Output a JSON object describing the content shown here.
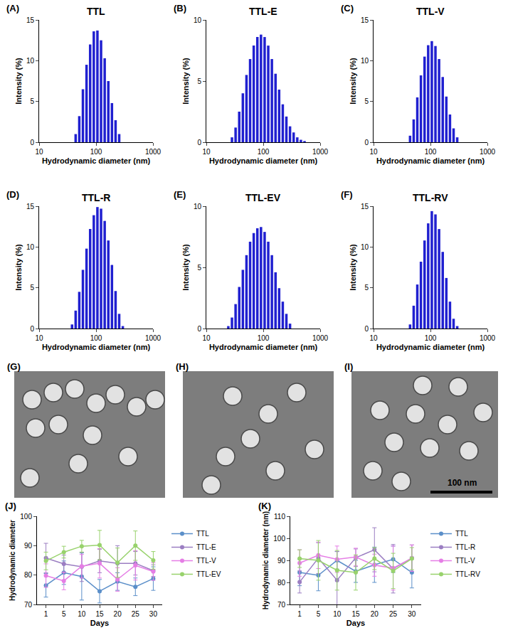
{
  "chart_data": [
    {
      "panel": "(A)",
      "type": "bar",
      "title": "TTL",
      "x_label": "Hydrodynamic diameter (nm)",
      "y_label": "Intensity (%)",
      "log": "x",
      "color": "#2020d0",
      "x": [
        43.82,
        50.75,
        58.77,
        68.06,
        78.82,
        91.28,
        105.7,
        122.4,
        141.8,
        164.2,
        190.1,
        220.2,
        255.0
      ],
      "values": [
        1.0,
        3.2,
        6.5,
        9.5,
        12.0,
        13.6,
        13.7,
        12.5,
        10.3,
        7.5,
        4.8,
        2.7,
        1.0
      ],
      "xlim": [
        10,
        1000
      ],
      "xticks": [
        10,
        100,
        1000
      ],
      "ylim": [
        0,
        15
      ],
      "yticks": [
        0,
        5,
        10,
        15
      ]
    },
    {
      "panel": "(B)",
      "type": "bar",
      "title": "TTL-E",
      "x_label": "Hydrodynamic diameter (nm)",
      "y_label": "Intensity (%)",
      "log": "x",
      "color": "#2020d0",
      "x": [
        28.21,
        32.67,
        37.84,
        43.82,
        50.75,
        58.77,
        68.06,
        78.82,
        91.28,
        105.7,
        122.4,
        141.8,
        164.2,
        190.1,
        220.2,
        255.0,
        295.3,
        342.0,
        396.1,
        458.7,
        531.2
      ],
      "values": [
        0.4,
        1.2,
        2.5,
        4.0,
        5.5,
        6.8,
        7.9,
        8.6,
        8.8,
        8.6,
        7.9,
        6.8,
        5.6,
        4.3,
        3.1,
        2.1,
        1.3,
        0.8,
        0.4,
        0.2,
        0.1
      ],
      "xlim": [
        10,
        1000
      ],
      "xticks": [
        10,
        100,
        1000
      ],
      "ylim": [
        0,
        10
      ],
      "yticks": [
        0,
        5,
        10
      ]
    },
    {
      "panel": "(C)",
      "type": "bar",
      "title": "TTL-V",
      "x_label": "Hydrodynamic diameter (nm)",
      "y_label": "Intensity (%)",
      "log": "x",
      "color": "#2020d0",
      "x": [
        43.82,
        50.75,
        58.77,
        68.06,
        78.82,
        91.28,
        105.7,
        122.4,
        141.8,
        164.2,
        190.1,
        220.2,
        255.0,
        295.3
      ],
      "values": [
        0.8,
        2.8,
        5.5,
        8.2,
        10.5,
        11.9,
        12.4,
        11.8,
        10.2,
        8.0,
        5.6,
        3.4,
        1.7,
        0.6
      ],
      "xlim": [
        10,
        1000
      ],
      "xticks": [
        10,
        100,
        1000
      ],
      "ylim": [
        0,
        15
      ],
      "yticks": [
        0,
        5,
        10,
        15
      ]
    },
    {
      "panel": "(D)",
      "type": "bar",
      "title": "TTL-R",
      "x_label": "Hydrodynamic diameter (nm)",
      "y_label": "Intensity (%)",
      "log": "x",
      "color": "#2020d0",
      "x": [
        37.84,
        43.82,
        50.75,
        58.77,
        68.06,
        78.82,
        91.28,
        105.7,
        122.4,
        141.8,
        164.2,
        190.1,
        220.2,
        255.0,
        295.3
      ],
      "values": [
        0.5,
        2.2,
        4.5,
        7.2,
        9.8,
        12.2,
        13.9,
        14.9,
        14.7,
        13.2,
        10.8,
        7.8,
        4.6,
        1.8,
        0.3
      ],
      "xlim": [
        10,
        1000
      ],
      "xticks": [
        10,
        100,
        1000
      ],
      "ylim": [
        0,
        15
      ],
      "yticks": [
        0,
        5,
        10,
        15
      ]
    },
    {
      "panel": "(E)",
      "type": "bar",
      "title": "TTL-EV",
      "x_label": "Hydrodynamic diameter (nm)",
      "y_label": "Intensity (%)",
      "log": "x",
      "color": "#2020d0",
      "x": [
        24.36,
        28.21,
        32.67,
        37.84,
        43.82,
        50.75,
        58.77,
        68.06,
        78.82,
        91.28,
        105.7,
        122.4,
        141.8,
        164.2,
        190.1,
        220.2,
        255.0,
        295.3
      ],
      "values": [
        0.2,
        0.9,
        2.0,
        3.4,
        4.8,
        6.0,
        7.1,
        7.8,
        8.2,
        8.3,
        7.9,
        7.1,
        6.0,
        4.6,
        3.3,
        2.2,
        1.2,
        0.4
      ],
      "xlim": [
        10,
        1000
      ],
      "xticks": [
        10,
        100,
        1000
      ],
      "ylim": [
        0,
        10
      ],
      "yticks": [
        0,
        5,
        10
      ]
    },
    {
      "panel": "(F)",
      "type": "bar",
      "title": "TTL-RV",
      "x_label": "Hydrodynamic diameter (nm)",
      "y_label": "Intensity (%)",
      "log": "x",
      "color": "#2020d0",
      "x": [
        43.82,
        50.75,
        58.77,
        68.06,
        78.82,
        91.28,
        105.7,
        122.4,
        141.8,
        164.2,
        190.1,
        220.2,
        255.0,
        295.3
      ],
      "values": [
        0.5,
        2.8,
        5.4,
        8.2,
        10.8,
        12.9,
        14.4,
        14.0,
        12.2,
        9.4,
        6.2,
        3.3,
        1.2,
        0.3
      ],
      "xlim": [
        10,
        1000
      ],
      "xticks": [
        10,
        100,
        1000
      ],
      "ylim": [
        0,
        15
      ],
      "yticks": [
        0,
        5,
        10,
        15
      ]
    },
    {
      "panel": "(G)",
      "type": "image"
    },
    {
      "panel": "(H)",
      "type": "image"
    },
    {
      "panel": "(I)",
      "type": "image",
      "annotations": [
        "100 nm"
      ]
    },
    {
      "panel": "(J)",
      "type": "line",
      "x_label": "Days",
      "y_label": "Hydrodynamic diameter",
      "legend": "right",
      "marker": "circle",
      "categories": [
        "1",
        "5",
        "10",
        "15",
        "20",
        "25",
        "30"
      ],
      "ylim": [
        70,
        100
      ],
      "yticks": [
        70,
        80,
        90,
        100
      ],
      "series": [
        {
          "name": "TTL",
          "color": "#5b8fc9",
          "values": [
            76.5,
            80.8,
            79.5,
            74.5,
            77.8,
            76.0,
            78.8
          ],
          "errors": [
            4,
            4,
            8,
            4,
            3,
            3,
            4
          ]
        },
        {
          "name": "TTL-E",
          "color": "#9b7ec2",
          "values": [
            85.8,
            83.8,
            82.8,
            84.8,
            84.0,
            84.0,
            81.5
          ],
          "errors": [
            5,
            3,
            5,
            4,
            6,
            4,
            2
          ]
        },
        {
          "name": "TTL-V",
          "color": "#e57ee5",
          "values": [
            79.8,
            78.0,
            83.0,
            84.0,
            78.5,
            83.3,
            81.2
          ],
          "errors": [
            4,
            3,
            4,
            5,
            4,
            5,
            3
          ]
        },
        {
          "name": "TTL-EV",
          "color": "#98d26c",
          "values": [
            84.8,
            87.8,
            89.8,
            90.2,
            84.2,
            90.0,
            85.0
          ],
          "errors": [
            3,
            2,
            2,
            5,
            5,
            5,
            3
          ]
        }
      ]
    },
    {
      "panel": "(K)",
      "type": "line",
      "x_label": "Days",
      "y_label": "Hydrodynamic diameter (nm)",
      "legend": "right",
      "marker": "circle",
      "categories": [
        "1",
        "5",
        "10",
        "15",
        "20",
        "25",
        "30"
      ],
      "ylim": [
        70,
        110
      ],
      "yticks": [
        70,
        80,
        90,
        100,
        110
      ],
      "series": [
        {
          "name": "TTL",
          "color": "#5b8fc9",
          "values": [
            84.5,
            83.2,
            90.0,
            85.0,
            88.0,
            90.5,
            84.5
          ],
          "errors": [
            6,
            7,
            4,
            5,
            8,
            6,
            7
          ]
        },
        {
          "name": "TTL-R",
          "color": "#9b7ec2",
          "values": [
            80.2,
            91.0,
            81.0,
            91.2,
            94.8,
            86.2,
            91.0
          ],
          "errors": [
            5,
            7,
            13,
            4,
            10,
            11,
            6
          ]
        },
        {
          "name": "TTL-V",
          "color": "#e57ee5",
          "values": [
            88.8,
            92.3,
            90.5,
            91.5,
            87.8,
            86.5,
            91.0
          ],
          "errors": [
            6,
            6,
            6,
            4,
            5,
            10,
            6
          ]
        },
        {
          "name": "TTL-RV",
          "color": "#98d26c",
          "values": [
            90.8,
            90.0,
            85.5,
            84.5,
            90.8,
            85.2,
            90.8
          ],
          "errors": [
            4,
            9,
            9,
            8,
            5,
            8,
            5
          ]
        }
      ]
    }
  ]
}
